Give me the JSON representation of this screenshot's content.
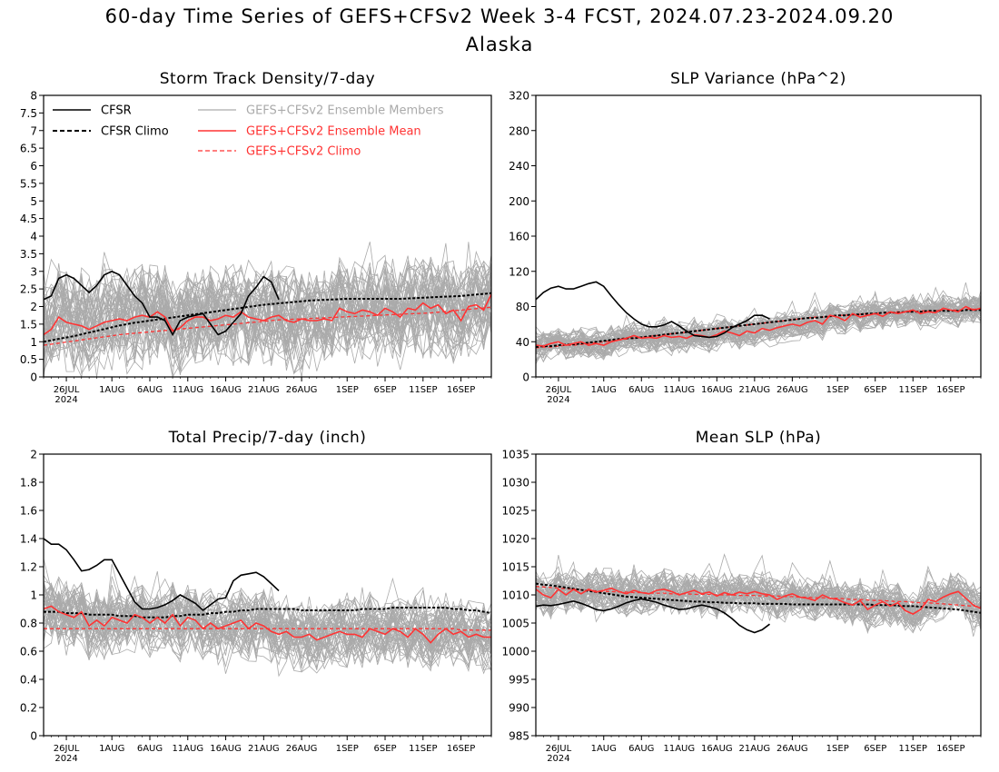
{
  "figure": {
    "title": "60-day Time Series of GEFS+CFSv2 Week 3-4 FCST, 2024.07.23-2024.09.20",
    "subtitle": "Alaska"
  },
  "colors": {
    "cfsr": "#000000",
    "members": "#aaaaaa",
    "ens_mean": "#ff3333",
    "gefs_climo": "#ff3333"
  },
  "legend": {
    "cfsr": "CFSR",
    "cfsr_climo": "CFSR Climo",
    "members": "GEFS+CFSv2 Ensemble Members",
    "ens_mean": "GEFS+CFSv2 Ensemble Mean",
    "gefs_climo": "GEFS+CFSv2 Climo"
  },
  "x_axis": {
    "start_date": "2024-07-23",
    "end_date": "2024-09-20",
    "days": 60,
    "ticks": [
      {
        "label": "26JUL",
        "sub": "2024",
        "date": "2024-07-26"
      },
      {
        "label": "1AUG",
        "date": "2024-08-01"
      },
      {
        "label": "6AUG",
        "date": "2024-08-06"
      },
      {
        "label": "11AUG",
        "date": "2024-08-11"
      },
      {
        "label": "16AUG",
        "date": "2024-08-16"
      },
      {
        "label": "21AUG",
        "date": "2024-08-21"
      },
      {
        "label": "26AUG",
        "date": "2024-08-26"
      },
      {
        "label": "1SEP",
        "date": "2024-09-01"
      },
      {
        "label": "6SEP",
        "date": "2024-09-06"
      },
      {
        "label": "11SEP",
        "date": "2024-09-11"
      },
      {
        "label": "16SEP",
        "date": "2024-09-16"
      }
    ]
  },
  "chart_data": [
    {
      "type": "line",
      "title": "Storm Track Density/7-day",
      "ylim": [
        0,
        8
      ],
      "yticks": [
        "0",
        "0.5",
        "1",
        "1.5",
        "2",
        "2.5",
        "3",
        "3.5",
        "4",
        "4.5",
        "5",
        "5.5",
        "6",
        "6.5",
        "7",
        "7.5",
        "8"
      ],
      "has_legend": true,
      "legend_position": "top",
      "series": [
        {
          "key": "cfsr",
          "values": [
            2.2,
            2.3,
            2.8,
            2.9,
            2.8,
            2.6,
            2.4,
            2.6,
            2.9,
            3.0,
            2.9,
            2.6,
            2.3,
            2.1,
            1.7,
            1.7,
            1.6,
            1.2,
            1.6,
            1.7,
            1.75,
            1.8,
            1.5,
            1.2,
            1.3,
            1.55,
            1.8,
            2.3,
            2.55,
            2.85,
            2.7,
            2.2
          ]
        },
        {
          "key": "cfsr_climo",
          "values": [
            1.0,
            1.04,
            1.08,
            1.12,
            1.16,
            1.21,
            1.26,
            1.31,
            1.36,
            1.41,
            1.46,
            1.5,
            1.54,
            1.57,
            1.6,
            1.63,
            1.66,
            1.69,
            1.72,
            1.75,
            1.78,
            1.81,
            1.84,
            1.87,
            1.9,
            1.93,
            1.96,
            1.99,
            2.02,
            2.05,
            2.07,
            2.09,
            2.11,
            2.13,
            2.15,
            2.17,
            2.18,
            2.19,
            2.2,
            2.21,
            2.22,
            2.22,
            2.22,
            2.22,
            2.22,
            2.22,
            2.22,
            2.22,
            2.23,
            2.24,
            2.25,
            2.26,
            2.27,
            2.28,
            2.29,
            2.3,
            2.32,
            2.34,
            2.36,
            2.38
          ]
        },
        {
          "key": "ens_mean",
          "values": [
            1.2,
            1.35,
            1.7,
            1.55,
            1.5,
            1.45,
            1.35,
            1.45,
            1.55,
            1.6,
            1.65,
            1.6,
            1.7,
            1.75,
            1.7,
            1.85,
            1.7,
            1.3,
            1.4,
            1.6,
            1.7,
            1.7,
            1.6,
            1.65,
            1.75,
            1.7,
            1.85,
            1.7,
            1.65,
            1.6,
            1.7,
            1.75,
            1.6,
            1.55,
            1.65,
            1.6,
            1.6,
            1.65,
            1.6,
            1.95,
            1.85,
            1.8,
            1.9,
            1.85,
            1.75,
            1.95,
            1.85,
            1.7,
            1.95,
            1.9,
            2.1,
            1.95,
            2.05,
            1.8,
            1.9,
            1.6,
            2.0,
            2.05,
            1.9,
            2.35
          ]
        },
        {
          "key": "gefs_climo",
          "values": [
            0.9,
            0.93,
            0.96,
            0.99,
            1.02,
            1.05,
            1.08,
            1.11,
            1.14,
            1.17,
            1.2,
            1.22,
            1.24,
            1.26,
            1.28,
            1.3,
            1.32,
            1.34,
            1.36,
            1.38,
            1.4,
            1.42,
            1.44,
            1.46,
            1.48,
            1.5,
            1.52,
            1.54,
            1.56,
            1.58,
            1.6,
            1.62,
            1.63,
            1.64,
            1.65,
            1.66,
            1.67,
            1.68,
            1.69,
            1.7,
            1.71,
            1.72,
            1.73,
            1.74,
            1.75,
            1.76,
            1.77,
            1.78,
            1.79,
            1.8,
            1.81,
            1.82,
            1.84,
            1.86,
            1.88,
            1.9,
            1.92,
            1.94,
            1.96,
            1.98
          ]
        }
      ],
      "members": {
        "count": 48,
        "spread": 1.0,
        "skew": 0.8
      }
    },
    {
      "type": "line",
      "title": "SLP Variance (hPa^2)",
      "ylim": [
        0,
        320
      ],
      "yticks": [
        "0",
        "40",
        "80",
        "120",
        "160",
        "200",
        "240",
        "280",
        "320"
      ],
      "has_legend": false,
      "series": [
        {
          "key": "cfsr",
          "values": [
            88,
            96,
            101,
            103,
            100,
            100,
            103,
            106,
            108,
            103,
            92,
            82,
            73,
            66,
            60,
            57,
            57,
            59,
            63,
            58,
            52,
            47,
            46,
            45,
            46,
            50,
            56,
            60,
            64,
            70,
            70,
            66
          ]
        },
        {
          "key": "cfsr_climo",
          "values": [
            34,
            35,
            35,
            36,
            37,
            37,
            38,
            39,
            40,
            41,
            42,
            43,
            44,
            44,
            45,
            46,
            47,
            48,
            49,
            50,
            51,
            52,
            53,
            54,
            55,
            56,
            57,
            58,
            59,
            60,
            61,
            62,
            63,
            64,
            65,
            66,
            67,
            67,
            68,
            69,
            70,
            70,
            71,
            71,
            72,
            72,
            73,
            73,
            73,
            74,
            74,
            74,
            75,
            75,
            75,
            75,
            75,
            76,
            76,
            76
          ]
        },
        {
          "key": "ens_mean",
          "values": [
            36,
            35,
            38,
            40,
            36,
            38,
            40,
            36,
            38,
            36,
            40,
            42,
            44,
            47,
            44,
            45,
            44,
            47,
            45,
            46,
            44,
            48,
            47,
            45,
            48,
            52,
            50,
            47,
            52,
            50,
            55,
            53,
            56,
            58,
            60,
            58,
            62,
            64,
            60,
            70,
            68,
            64,
            72,
            68,
            70,
            72,
            69,
            74,
            72,
            74,
            76,
            72,
            74,
            73,
            78,
            76,
            74,
            80,
            76,
            78
          ]
        },
        {
          "key": "gefs_climo",
          "values": [
            33,
            34,
            34,
            35,
            36,
            36,
            37,
            38,
            39,
            40,
            41,
            42,
            43,
            44,
            45,
            46,
            47,
            48,
            49,
            50,
            51,
            52,
            53,
            54,
            55,
            56,
            57,
            58,
            59,
            60,
            61,
            62,
            63,
            64,
            65,
            66,
            67,
            68,
            68,
            69,
            70,
            70,
            71,
            71,
            72,
            72,
            73,
            73,
            74,
            74,
            74,
            75,
            75,
            75,
            76,
            76,
            76,
            77,
            77,
            77
          ]
        }
      ],
      "members": {
        "count": 48,
        "spread": 12,
        "skew": 1.4
      }
    },
    {
      "type": "line",
      "title": "Total Precip/7-day (inch)",
      "ylim": [
        0,
        2
      ],
      "yticks": [
        "0",
        "0.2",
        "0.4",
        "0.6",
        "0.8",
        "1",
        "1.2",
        "1.4",
        "1.6",
        "1.8",
        "2"
      ],
      "has_legend": false,
      "series": [
        {
          "key": "cfsr",
          "values": [
            1.4,
            1.36,
            1.36,
            1.32,
            1.25,
            1.17,
            1.18,
            1.21,
            1.25,
            1.25,
            1.15,
            1.05,
            0.95,
            0.9,
            0.9,
            0.91,
            0.93,
            0.96,
            1.0,
            0.97,
            0.94,
            0.89,
            0.93,
            0.97,
            0.98,
            1.1,
            1.14,
            1.15,
            1.16,
            1.13,
            1.08,
            1.03
          ]
        },
        {
          "key": "cfsr_climo",
          "values": [
            0.88,
            0.88,
            0.88,
            0.87,
            0.87,
            0.87,
            0.86,
            0.86,
            0.86,
            0.86,
            0.85,
            0.85,
            0.85,
            0.84,
            0.84,
            0.84,
            0.84,
            0.85,
            0.85,
            0.86,
            0.86,
            0.86,
            0.87,
            0.87,
            0.88,
            0.88,
            0.89,
            0.89,
            0.9,
            0.9,
            0.9,
            0.9,
            0.9,
            0.9,
            0.89,
            0.89,
            0.89,
            0.89,
            0.89,
            0.89,
            0.89,
            0.89,
            0.9,
            0.9,
            0.9,
            0.9,
            0.91,
            0.91,
            0.91,
            0.91,
            0.91,
            0.91,
            0.91,
            0.91,
            0.9,
            0.9,
            0.89,
            0.89,
            0.88,
            0.87
          ]
        },
        {
          "key": "ens_mean",
          "values": [
            0.9,
            0.92,
            0.88,
            0.86,
            0.84,
            0.88,
            0.78,
            0.82,
            0.78,
            0.84,
            0.82,
            0.8,
            0.86,
            0.84,
            0.8,
            0.84,
            0.8,
            0.86,
            0.78,
            0.84,
            0.82,
            0.76,
            0.8,
            0.76,
            0.78,
            0.8,
            0.82,
            0.76,
            0.8,
            0.78,
            0.74,
            0.72,
            0.74,
            0.7,
            0.7,
            0.72,
            0.68,
            0.7,
            0.72,
            0.74,
            0.72,
            0.72,
            0.7,
            0.76,
            0.74,
            0.72,
            0.76,
            0.74,
            0.7,
            0.76,
            0.72,
            0.66,
            0.72,
            0.76,
            0.72,
            0.74,
            0.7,
            0.72,
            0.7,
            0.7
          ]
        },
        {
          "key": "gefs_climo",
          "values": [
            0.76,
            0.76,
            0.76,
            0.76,
            0.76,
            0.76,
            0.76,
            0.76,
            0.76,
            0.76,
            0.76,
            0.76,
            0.76,
            0.76,
            0.76,
            0.76,
            0.76,
            0.76,
            0.76,
            0.76,
            0.76,
            0.76,
            0.76,
            0.76,
            0.76,
            0.76,
            0.76,
            0.76,
            0.76,
            0.76,
            0.76,
            0.76,
            0.76,
            0.76,
            0.76,
            0.76,
            0.76,
            0.76,
            0.76,
            0.76,
            0.76,
            0.76,
            0.76,
            0.76,
            0.76,
            0.76,
            0.76,
            0.76,
            0.76,
            0.76,
            0.76,
            0.76,
            0.76,
            0.76,
            0.76,
            0.75,
            0.75,
            0.75,
            0.75,
            0.75
          ]
        }
      ],
      "members": {
        "count": 48,
        "spread": 0.17,
        "skew": 1.0
      }
    },
    {
      "type": "line",
      "title": "Mean SLP (hPa)",
      "ylim": [
        985,
        1035
      ],
      "yticks": [
        "985",
        "990",
        "995",
        "1000",
        "1005",
        "1010",
        "1015",
        "1020",
        "1025",
        "1030",
        "1035"
      ],
      "has_legend": false,
      "series": [
        {
          "key": "cfsr",
          "values": [
            1008,
            1008.2,
            1008.1,
            1008.3,
            1008.6,
            1008.9,
            1008.5,
            1008,
            1007.4,
            1007.2,
            1007.5,
            1008,
            1008.6,
            1009,
            1009.3,
            1009,
            1008.7,
            1008.2,
            1007.8,
            1007.4,
            1007.5,
            1007.9,
            1008.2,
            1007.9,
            1007.5,
            1006.8,
            1005.8,
            1004.6,
            1003.8,
            1003.3,
            1003.8,
            1004.8
          ]
        },
        {
          "key": "cfsr_climo",
          "values": [
            1012,
            1011.8,
            1011.7,
            1011.5,
            1011.3,
            1011.1,
            1010.9,
            1010.7,
            1010.5,
            1010.3,
            1010.1,
            1009.9,
            1009.7,
            1009.6,
            1009.5,
            1009.4,
            1009.3,
            1009.2,
            1009.1,
            1009.0,
            1008.9,
            1008.8,
            1008.8,
            1008.7,
            1008.7,
            1008.6,
            1008.6,
            1008.5,
            1008.5,
            1008.5,
            1008.4,
            1008.4,
            1008.4,
            1008.4,
            1008.3,
            1008.3,
            1008.3,
            1008.3,
            1008.3,
            1008.3,
            1008.3,
            1008.3,
            1008.3,
            1008.3,
            1008.3,
            1008.2,
            1008.2,
            1008.2,
            1008.1,
            1008.0,
            1008.0,
            1007.9,
            1007.8,
            1007.7,
            1007.6,
            1007.5,
            1007.4,
            1007.2,
            1007.0,
            1006.8
          ]
        },
        {
          "key": "ens_mean",
          "values": [
            1011,
            1010,
            1009.5,
            1011,
            1010,
            1011,
            1010.2,
            1011,
            1010.5,
            1010.8,
            1011.2,
            1010.6,
            1010.2,
            1010.8,
            1010.4,
            1010.2,
            1010.8,
            1011,
            1010.6,
            1010,
            1010.4,
            1010.8,
            1010.2,
            1010.5,
            1009.8,
            1010.4,
            1010,
            1010.5,
            1010.2,
            1010.6,
            1010.2,
            1010,
            1009.2,
            1009.8,
            1010.2,
            1009.6,
            1009.4,
            1009,
            1010,
            1009.4,
            1009.2,
            1008.6,
            1008.2,
            1009,
            1007.4,
            1008.2,
            1008.8,
            1008,
            1008.6,
            1007.2,
            1006.6,
            1007.4,
            1009.2,
            1008.8,
            1009.6,
            1010.2,
            1010.6,
            1009.4,
            1008.2,
            1007.6
          ]
        },
        {
          "key": "gefs_climo",
          "values": [
            1011.5,
            1011.4,
            1011.3,
            1011.2,
            1011.1,
            1011.0,
            1010.9,
            1010.8,
            1010.7,
            1010.6,
            1010.6,
            1010.5,
            1010.5,
            1010.4,
            1010.4,
            1010.3,
            1010.3,
            1010.3,
            1010.2,
            1010.2,
            1010.2,
            1010.1,
            1010.1,
            1010.1,
            1010.0,
            1010.0,
            1010.0,
            1009.9,
            1009.9,
            1009.9,
            1009.8,
            1009.8,
            1009.8,
            1009.7,
            1009.7,
            1009.6,
            1009.6,
            1009.5,
            1009.5,
            1009.4,
            1009.4,
            1009.3,
            1009.2,
            1009.2,
            1009.1,
            1009.0,
            1009.0,
            1008.9,
            1008.8,
            1008.8,
            1008.7,
            1008.6,
            1008.6,
            1008.5,
            1008.4,
            1008.3,
            1008.2,
            1008.1,
            1008.0,
            1007.9
          ]
        }
      ],
      "members": {
        "count": 48,
        "spread": 2.6,
        "skew": 1.6
      }
    }
  ]
}
